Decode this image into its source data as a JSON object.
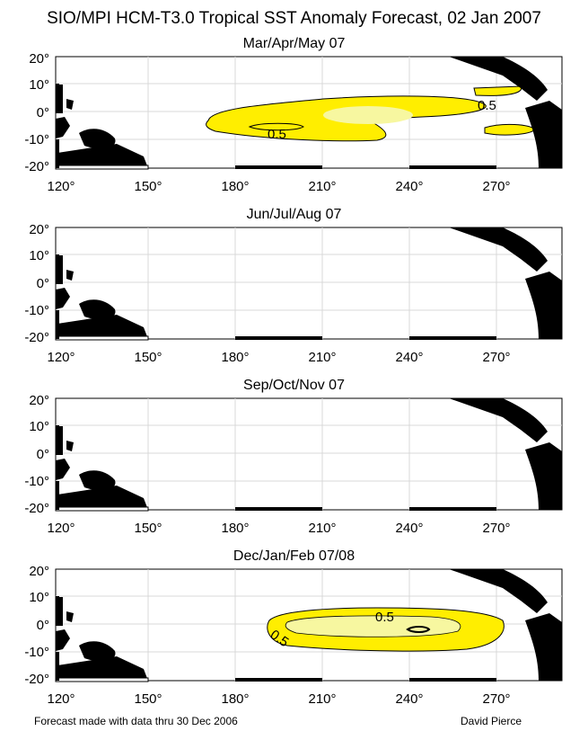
{
  "title": "SIO/MPI HCM-T3.0 Tropical SST Anomaly Forecast, 02 Jan 2007",
  "lat_ticks": [
    "20°",
    "10°",
    "0°",
    "-10°",
    "-20°"
  ],
  "lon_ticks": [
    "120°",
    "150°",
    "180°",
    "210°",
    "240°",
    "270°"
  ],
  "panels": [
    {
      "subtitle": "Mar/Apr/May 07",
      "contour_labels": [
        "0.5",
        "0.5"
      ]
    },
    {
      "subtitle": "Jun/Jul/Aug 07",
      "contour_labels": []
    },
    {
      "subtitle": "Sep/Oct/Nov 07",
      "contour_labels": []
    },
    {
      "subtitle": "Dec/Jan/Feb 07/08",
      "contour_labels": [
        "0.5",
        "0.5"
      ]
    }
  ],
  "colors": {
    "anomaly_fill": "#ffee00",
    "anomaly_core": "#f7f7a0",
    "land": "#000000",
    "grid": "#d8d8d8"
  },
  "footer": {
    "left": "Forecast made with data thru 30 Dec 2006",
    "right": "David Pierce"
  }
}
